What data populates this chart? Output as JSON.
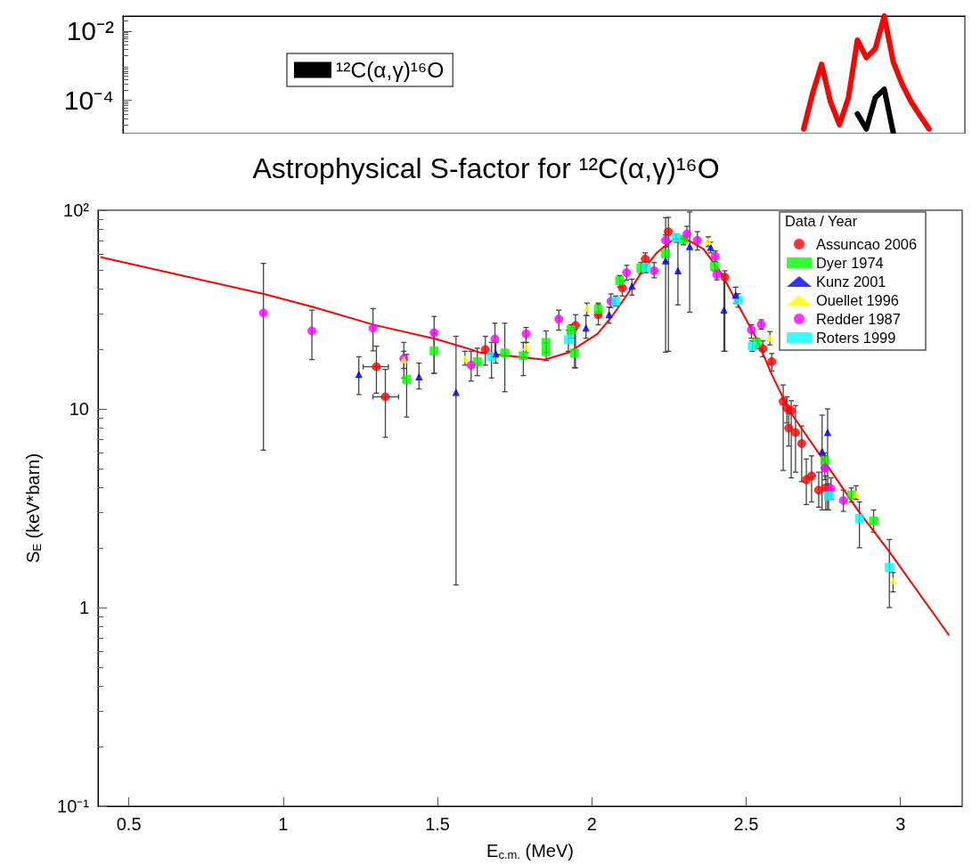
{
  "chart_data": [
    {
      "type": "line",
      "categories": [
        null,
        null,
        null,
        null,
        null,
        null,
        null,
        null,
        null,
        null,
        null,
        null,
        null,
        null,
        null,
        null,
        null,
        null,
        null,
        null,
        null,
        null,
        null,
        null,
        null,
        null,
        null,
        null,
        null,
        null,
        null,
        null,
        null,
        null,
        null,
        null,
        null,
        null,
        null,
        null,
        null,
        null,
        null,
        null,
        null,
        null,
        null,
        null,
        null,
        null,
        null,
        null,
        null,
        null,
        null,
        null,
        null,
        null,
        null,
        null,
        null,
        null,
        null,
        null,
        null,
        null,
        null,
        null,
        null,
        null,
        null,
        null,
        null,
        null,
        null,
        null,
        null,
        null,
        null,
        null,
        null,
        null,
        null,
        null,
        null,
        null,
        null,
        null,
        null,
        null,
        null,
        null,
        null,
        null,
        null
      ],
      "series": [
        {
          "color": "#ff0000",
          "values": [
            null,
            null,
            null,
            null,
            null,
            null,
            null,
            null,
            null,
            null,
            null,
            null,
            null,
            null,
            null,
            null,
            null,
            null,
            null,
            null,
            null,
            null,
            null,
            null,
            null,
            null,
            null,
            null,
            null,
            null,
            null,
            null,
            null,
            null,
            null,
            null,
            null,
            null,
            null,
            null,
            null,
            null,
            null,
            null,
            null,
            null,
            null,
            null,
            null,
            null,
            null,
            null,
            null,
            null,
            null,
            null,
            null,
            null,
            null,
            null,
            null,
            null,
            null,
            null,
            null,
            null,
            null,
            null,
            null,
            null,
            null,
            null,
            null,
            null,
            null,
            null,
            1.5e-05,
            0.00016,
            0.0011,
            9e-05,
            2e-05,
            0.00012,
            0.0055,
            0.0017,
            0.0031,
            0.027,
            0.0013,
            0.00029,
            9e-05,
            3.6e-05,
            1.5e-05,
            null,
            null,
            null,
            null
          ]
        },
        {
          "name": "¹²C(α,γ)¹⁶O",
          "color": "#000000",
          "values": [
            null,
            null,
            null,
            null,
            null,
            null,
            null,
            null,
            null,
            null,
            null,
            null,
            null,
            null,
            null,
            null,
            null,
            null,
            null,
            null,
            null,
            null,
            null,
            null,
            null,
            null,
            null,
            null,
            null,
            null,
            null,
            null,
            null,
            null,
            null,
            null,
            null,
            null,
            null,
            null,
            null,
            null,
            null,
            null,
            null,
            null,
            null,
            null,
            null,
            null,
            null,
            null,
            null,
            null,
            null,
            null,
            null,
            null,
            null,
            null,
            null,
            null,
            null,
            null,
            null,
            null,
            null,
            null,
            null,
            null,
            null,
            null,
            null,
            null,
            null,
            null,
            null,
            null,
            null,
            null,
            null,
            null,
            4.1e-05,
            1.5e-05,
            0.00012,
            0.00021,
            1.2e-05,
            null,
            null,
            null,
            null,
            null,
            null,
            null,
            null
          ]
        }
      ],
      "log": "y",
      "ylim": [
        1.1e-05,
        0.027
      ],
      "yticks": [
        {
          "value": 0.01,
          "label": "10⁻²"
        },
        {
          "value": 0.0001,
          "label": "10⁻⁴"
        }
      ],
      "legend": "top left",
      "marker": "none",
      "tick_labels": "y"
    },
    {
      "type": "scatter",
      "title": "Astrophysical S-factor for ¹²C(α,γ)¹⁶O",
      "xlabel": "E$_{c.m.}$ (MeV)",
      "ylabel": "S$_{E}$ (keV*barn)",
      "legend_title": "Data / Year",
      "legend": "top right",
      "marker": "circle",
      "log": "y",
      "xlim": [
        0.4,
        3.2
      ],
      "xticks": [
        0.5,
        1,
        1.5,
        2,
        2.5,
        3
      ],
      "ylim": [
        0.1,
        100
      ],
      "yticks": [
        {
          "value": 0.1,
          "label": "10⁻¹"
        },
        1,
        10,
        {
          "value": 100,
          "label": "10²"
        }
      ],
      "series": [
        {
          "name": "Assuncao 2006",
          "color": "#ff0000",
          "x": [
            1.302,
            1.331,
            1.655,
            1.947,
            2.021,
            2.099,
            2.173,
            2.248,
            2.431,
            2.554,
            2.583,
            2.62,
            2.632,
            2.646,
            2.638,
            2.66,
            2.68,
            2.695,
            2.712,
            2.735,
            2.758
          ],
          "values": [
            16.3,
            11.5,
            19.9,
            26.3,
            29.8,
            40.6,
            56.8,
            78,
            46,
            20.1,
            17.3,
            10.9,
            10.1,
            9.8,
            8.0,
            7.6,
            6.7,
            4.4,
            4.6,
            3.9,
            4.0
          ],
          "errors": [
            [
              12.0,
              20.7
            ],
            [
              7.2,
              15.8
            ],
            [
              16.6,
              23.2
            ],
            [
              16.1,
              29.8
            ],
            [
              26.5,
              33.5
            ],
            [
              37,
              44
            ],
            [
              52,
              61
            ],
            [
              19.5,
              92
            ],
            [
              19.5,
              49.6
            ],
            [
              18.3,
              22
            ],
            [
              15.5,
              19
            ],
            [
              4.9,
              13.2
            ],
            [
              8.5,
              11.5
            ],
            [
              4.5,
              11
            ],
            [
              6.5,
              9.5
            ],
            [
              4.8,
              10.4
            ],
            [
              4.3,
              8.2
            ],
            [
              3.3,
              5.6
            ],
            [
              3.4,
              5.8
            ],
            [
              3.2,
              4.8
            ],
            [
              3.1,
              4.6
            ]
          ],
          "xerrors": [
            [
              1.259,
              1.341
            ],
            [
              1.291,
              1.374
            ],
            null,
            null,
            null,
            null,
            null,
            null,
            null,
            null,
            null,
            null,
            null,
            null,
            null,
            null,
            null,
            null,
            null,
            null,
            null
          ]
        },
        {
          "name": "Dyer 1974",
          "color": "#00ff00",
          "marker": "square",
          "x": [
            1.4,
            1.489,
            1.629,
            1.718,
            1.778,
            1.852,
            1.852,
            1.933,
            1.944,
            2.021,
            2.09,
            2.159,
            2.239,
            2.297,
            2.397,
            2.534,
            2.755,
            2.841,
            2.913
          ],
          "values": [
            14.1,
            19.6,
            17.3,
            19.1,
            18.5,
            21.6,
            19.5,
            25,
            19.1,
            31.7,
            44.2,
            51.2,
            60.4,
            71.3,
            52.3,
            21.6,
            5.47,
            3.69,
            2.73
          ],
          "errors": [
            [
              9.1,
              18.8
            ],
            [
              15.1,
              24.0
            ],
            [
              14.7,
              20.2
            ],
            [
              12.2,
              27.0
            ],
            [
              14.7,
              21.6
            ],
            [
              19.2,
              24.7
            ],
            [
              17.5,
              21.5
            ],
            [
              22.7,
              26.5
            ],
            [
              16.1,
              24.9
            ],
            [
              29.5,
              34.1
            ],
            [
              41.1,
              46.9
            ],
            [
              48,
              54.5
            ],
            [
              55,
              65.6
            ],
            [
              67,
              74
            ],
            [
              49.6,
              55.2
            ],
            [
              20.1,
              22.7
            ],
            [
              5.0,
              6.0
            ],
            [
              3.4,
              4.0
            ],
            [
              2.4,
              3.1
            ]
          ]
        },
        {
          "name": "Kunz 2001",
          "color": "#0000ff",
          "marker": "triangle",
          "x": [
            1.245,
            1.44,
            1.56,
            1.689,
            1.981,
            2.056,
            2.13,
            2.239,
            2.279,
            2.317,
            2.385,
            2.428,
            2.466,
            2.746,
            2.764
          ],
          "values": [
            14.9,
            14.5,
            12.1,
            18.9,
            25.5,
            29.8,
            41.5,
            55.6,
            49.6,
            65.6,
            65,
            31.4,
            37.4,
            6.1,
            7.6
          ],
          "errors": [
            [
              11.8,
              18.3
            ],
            [
              12.6,
              17.0
            ],
            [
              1.3,
              23.2
            ],
            [
              17.0,
              21.6
            ],
            [
              22.7,
              29.5
            ],
            [
              27,
              32.5
            ],
            [
              37.4,
              45
            ],
            [
              19.3,
              91.7
            ],
            [
              33.4,
              71.5
            ],
            [
              30.7,
              98
            ],
            [
              61,
              69
            ],
            [
              19.5,
              46.6
            ],
            [
              34,
              41
            ],
            [
              3.1,
              9.3
            ],
            [
              3.1,
              10
            ]
          ]
        },
        {
          "name": "Ouellet 1996",
          "color": "#ffff00",
          "marker": "triangle",
          "x": [
            1.391,
            1.589,
            1.787,
            1.984,
            2.377,
            2.577,
            2.856,
            2.976
          ],
          "values": [
            17.7,
            17.9,
            20.5,
            32.1,
            69.8,
            22.7,
            3.72,
            1.36
          ],
          "errors": [
            [
              16,
              19.5
            ],
            [
              16.6,
              19.5
            ],
            [
              19.2,
              21.6
            ],
            [
              29.5,
              34.1
            ],
            [
              65.6,
              73.5
            ],
            [
              21,
              24.5
            ],
            [
              3.5,
              4.1
            ],
            [
              1.2,
              1.5
            ]
          ]
        },
        {
          "name": "Redder 1987",
          "color": "#ff00ff",
          "x": [
            0.936,
            1.093,
            1.291,
            1.391,
            1.489,
            1.609,
            1.686,
            1.787,
            1.893,
            2.062,
            2.113,
            2.202,
            2.239,
            2.308,
            2.342,
            2.4,
            2.405,
            2.517,
            2.549,
            2.755,
            2.775,
            2.815
          ],
          "values": [
            30.4,
            24.7,
            25.5,
            17.9,
            24.2,
            16.6,
            22.5,
            23.9,
            28.3,
            34.8,
            48.5,
            49.6,
            70.6,
            75.9,
            70.6,
            58.6,
            47.5,
            25.0,
            26.6,
            5.03,
            3.96,
            3.46
          ],
          "errors": [
            [
              6.2,
              54
            ],
            [
              17.7,
              31.4
            ],
            [
              19.6,
              32.0
            ],
            [
              14.3,
              21.6
            ],
            [
              15.1,
              29.2
            ],
            [
              13.8,
              19.5
            ],
            [
              18.3,
              27.0
            ],
            [
              21.6,
              25.7
            ],
            [
              24.9,
              31.4
            ],
            [
              32.4,
              37.9
            ],
            [
              44.6,
              52.8
            ],
            [
              45.7,
              54.5
            ],
            [
              65.6,
              75.2
            ],
            [
              70,
              83
            ],
            [
              63,
              78
            ],
            [
              55.2,
              62.3
            ],
            [
              44.6,
              50.5
            ],
            [
              22.7,
              26.5
            ],
            [
              25.2,
              28.1
            ],
            [
              4.4,
              5.8
            ],
            [
              3.5,
              4.5
            ],
            [
              3.05,
              3.9
            ]
          ]
        },
        {
          "name": "Roters 1999",
          "color": "#00ffff",
          "marker": "square",
          "x": [
            1.675,
            1.924,
            2.077,
            2.176,
            2.273,
            2.474,
            2.52,
            2.767,
            2.867,
            2.964
          ],
          "values": [
            18.3,
            22.3,
            34.8,
            51.7,
            72.8,
            35.2,
            20.7,
            3.65,
            2.81,
            1.59
          ],
          "errors": [
            [
              14.3,
              21.6
            ],
            [
              19.5,
              24.9
            ],
            [
              33,
              37
            ],
            [
              48.5,
              55
            ],
            [
              69,
              76
            ],
            [
              32.5,
              38
            ],
            [
              19.5,
              22
            ],
            [
              3.1,
              4.2
            ],
            [
              2.0,
              3.4
            ],
            [
              1.0,
              2.2
            ]
          ]
        },
        {
          "type": "line",
          "color": "#ff0000",
          "marker": "none",
          "x": [
            0.41,
            0.94,
            1.093,
            1.294,
            1.494,
            1.609,
            1.638,
            1.732,
            1.847,
            1.924,
            2.019,
            2.067,
            2.116,
            2.162,
            2.21,
            2.268,
            2.305,
            2.362,
            2.42,
            2.477,
            2.534,
            2.583,
            2.64,
            2.755,
            2.861,
            2.964,
            3.156
          ],
          "values": [
            58,
            37.8,
            32.7,
            26.5,
            22.5,
            19.9,
            19.2,
            18.5,
            17.7,
            19.2,
            23.9,
            29.5,
            37.9,
            49,
            61,
            72,
            71.6,
            63.7,
            48,
            32.7,
            22.5,
            14.9,
            9.8,
            5.4,
            3.1,
            1.91,
            0.73
          ]
        }
      ]
    }
  ]
}
